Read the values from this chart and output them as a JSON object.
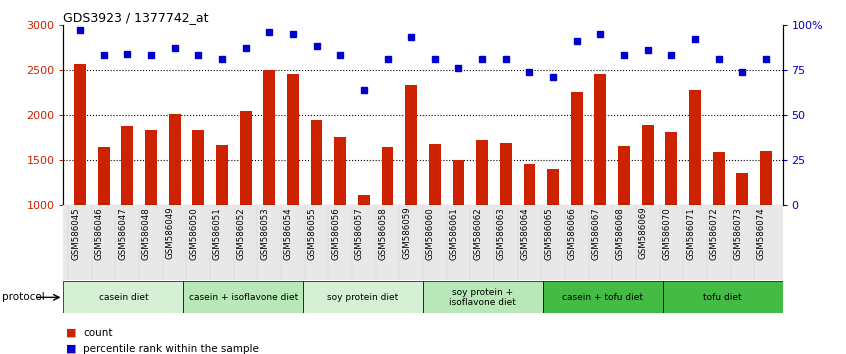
{
  "title": "GDS3923 / 1377742_at",
  "samples": [
    "GSM586045",
    "GSM586046",
    "GSM586047",
    "GSM586048",
    "GSM586049",
    "GSM586050",
    "GSM586051",
    "GSM586052",
    "GSM586053",
    "GSM586054",
    "GSM586055",
    "GSM586056",
    "GSM586057",
    "GSM586058",
    "GSM586059",
    "GSM586060",
    "GSM586061",
    "GSM586062",
    "GSM586063",
    "GSM586064",
    "GSM586065",
    "GSM586066",
    "GSM586067",
    "GSM586068",
    "GSM586069",
    "GSM586070",
    "GSM586071",
    "GSM586072",
    "GSM586073",
    "GSM586074"
  ],
  "counts": [
    2570,
    1650,
    1880,
    1830,
    2010,
    1830,
    1670,
    2050,
    2500,
    2450,
    1950,
    1760,
    1110,
    1650,
    2330,
    1680,
    1500,
    1720,
    1690,
    1460,
    1400,
    2260,
    2450,
    1660,
    1890,
    1810,
    2280,
    1590,
    1360,
    1600
  ],
  "percentiles": [
    97,
    83,
    84,
    83,
    87,
    83,
    81,
    87,
    96,
    95,
    88,
    83,
    64,
    81,
    93,
    81,
    76,
    81,
    81,
    74,
    71,
    91,
    95,
    83,
    86,
    83,
    92,
    81,
    74,
    81
  ],
  "protocols": [
    {
      "label": "casein diet",
      "start": 0,
      "end": 5,
      "color": "#d5f0d5"
    },
    {
      "label": "casein + isoflavone diet",
      "start": 5,
      "end": 10,
      "color": "#b8e8b8"
    },
    {
      "label": "soy protein diet",
      "start": 10,
      "end": 15,
      "color": "#d5f0d5"
    },
    {
      "label": "soy protein +\nisoflavone diet",
      "start": 15,
      "end": 20,
      "color": "#b8e8b8"
    },
    {
      "label": "casein + tofu diet",
      "start": 20,
      "end": 25,
      "color": "#44bb44"
    },
    {
      "label": "tofu diet",
      "start": 25,
      "end": 30,
      "color": "#44bb44"
    }
  ],
  "ylim_left": [
    1000,
    3000
  ],
  "ylim_right": [
    0,
    100
  ],
  "yticks_left": [
    1000,
    1500,
    2000,
    2500,
    3000
  ],
  "yticks_right": [
    0,
    25,
    50,
    75,
    100
  ],
  "bar_color": "#cc2200",
  "dot_color": "#0000cc",
  "background_color": "#ffffff",
  "grid_lines": [
    1500,
    2000,
    2500
  ]
}
